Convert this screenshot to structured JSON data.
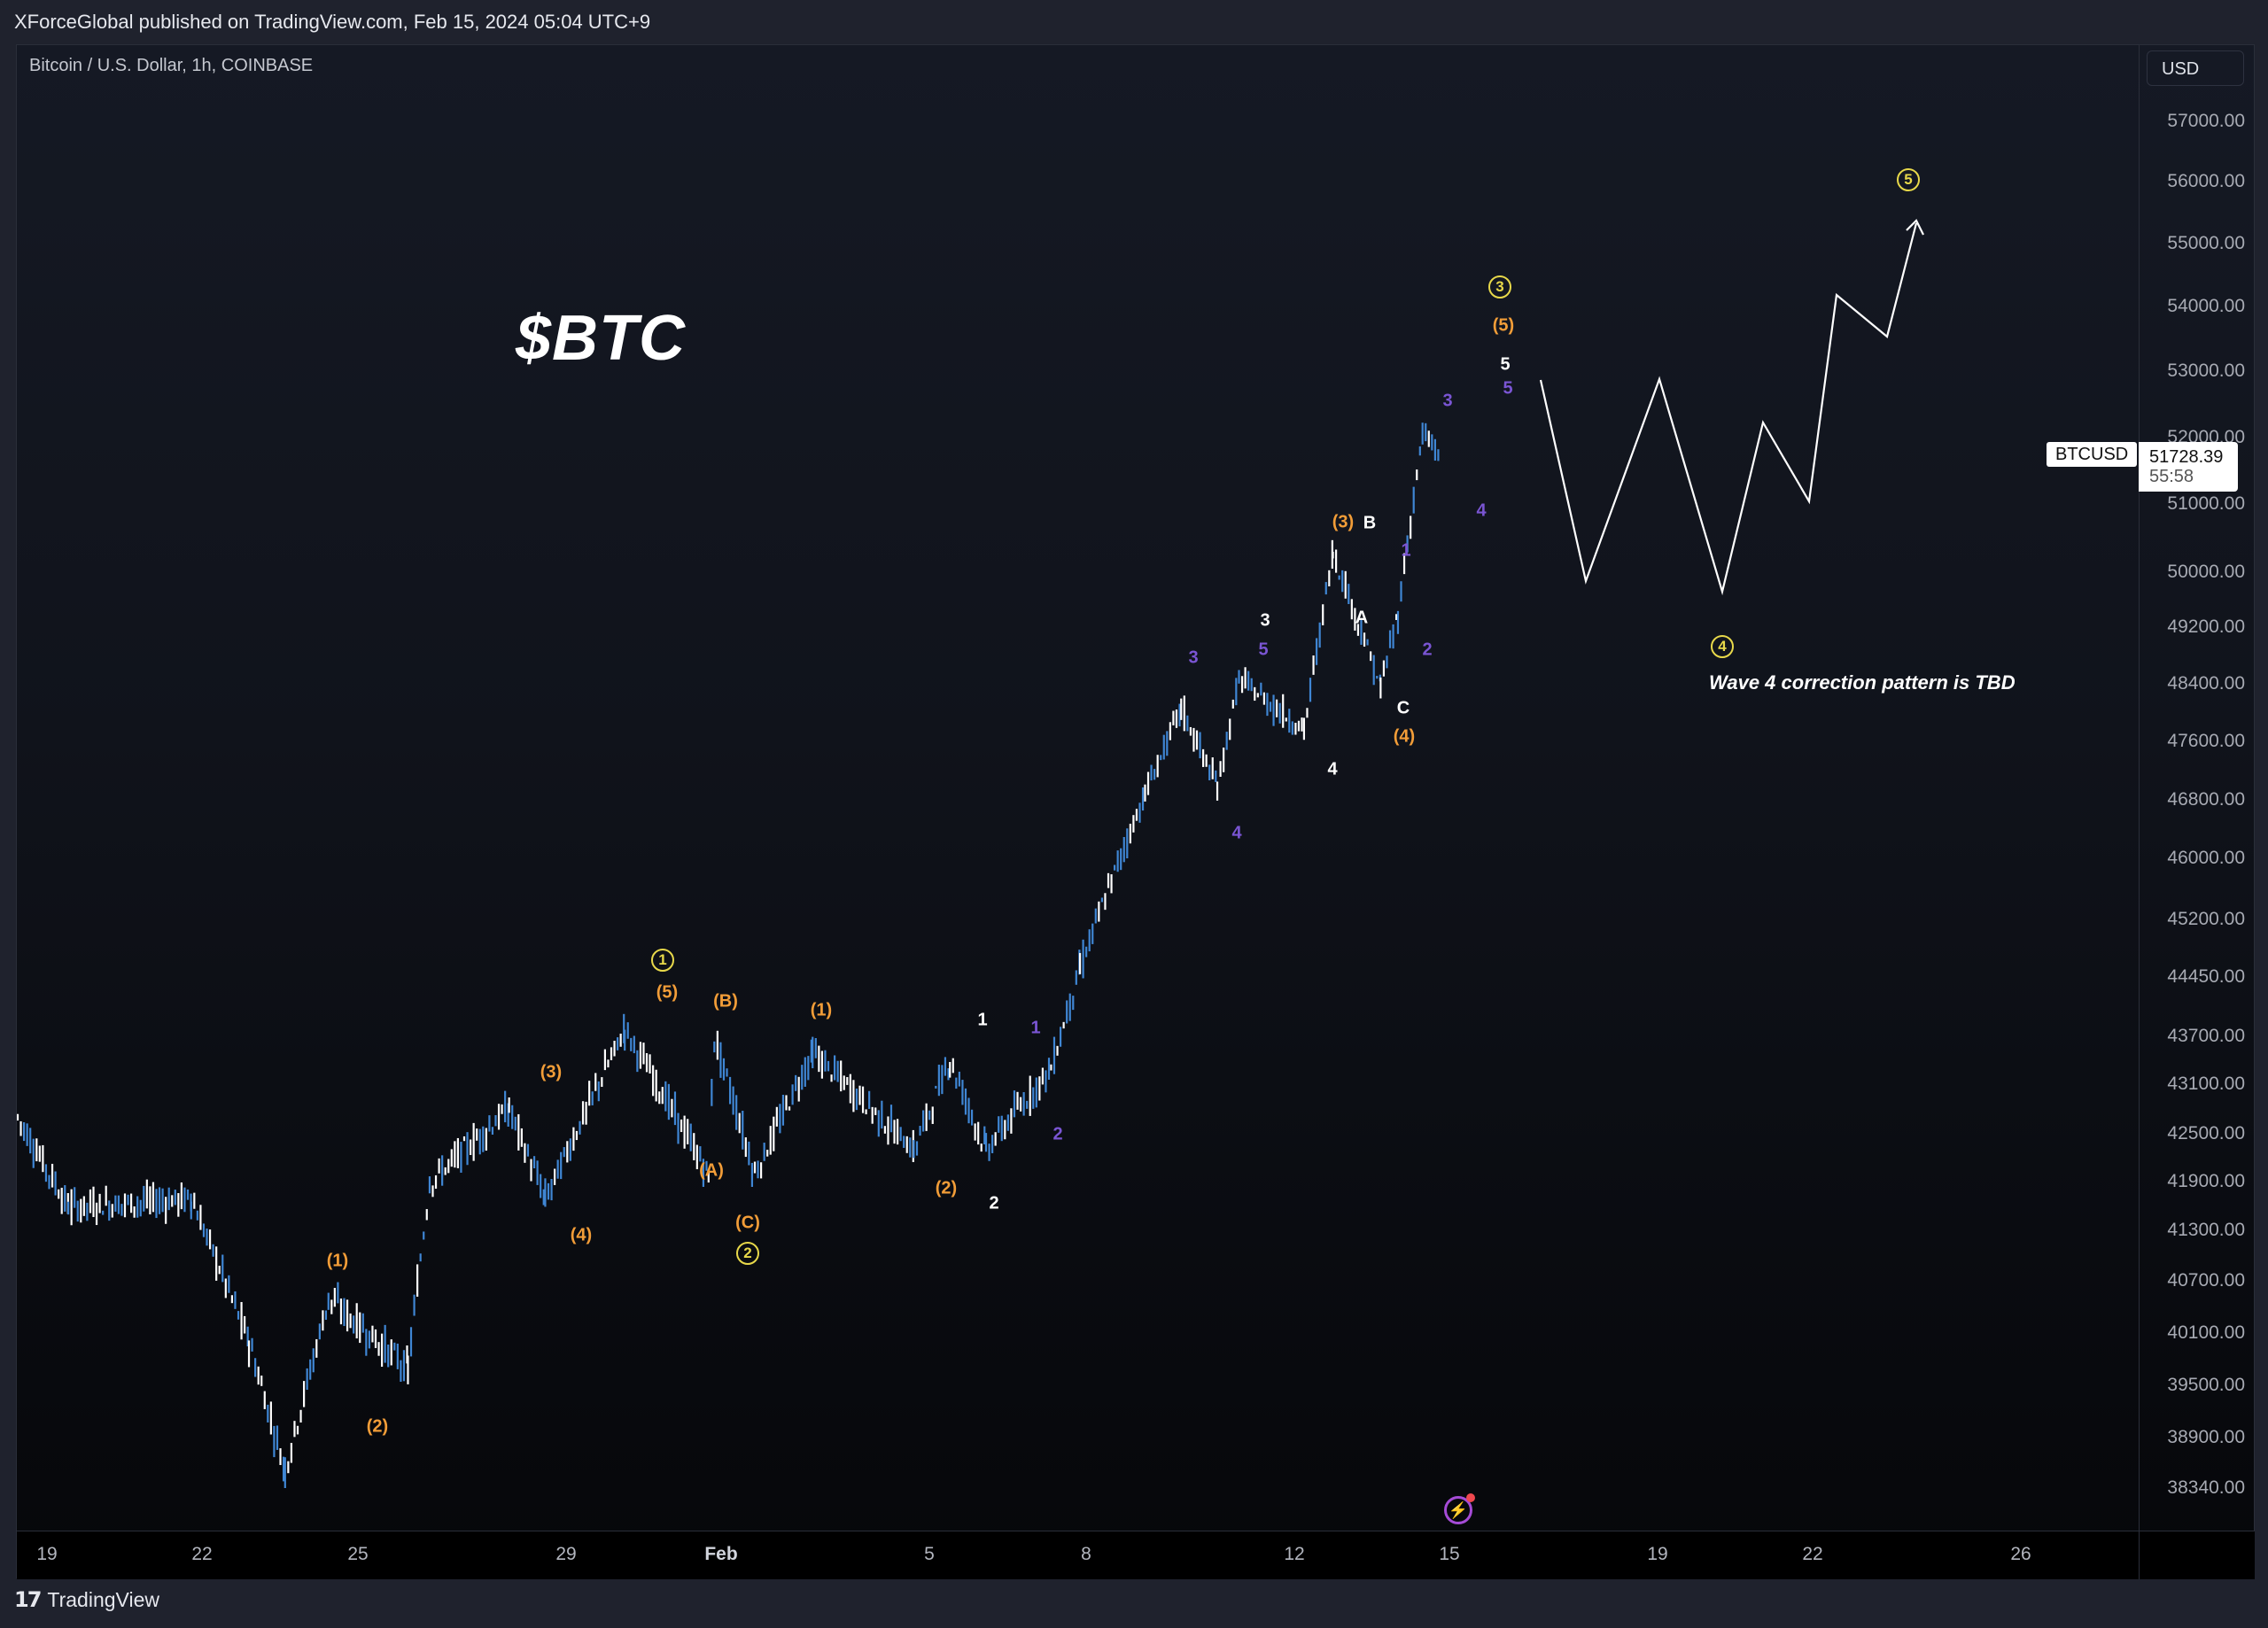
{
  "header": {
    "published": "XForceGlobal published on TradingView.com, Feb 15, 2024 05:04 UTC+9"
  },
  "chart": {
    "symbol_line": "Bitcoin / U.S. Dollar, 1h, COINBASE",
    "title": "$BTC",
    "currency_button": "USD",
    "last_price": {
      "symbol": "BTCUSD",
      "value": "51728.39",
      "countdown": "55:58"
    },
    "note": "Wave 4 correction pattern is TBD",
    "colors": {
      "up_candle": "#ffffff",
      "down_candle": "#3f86d4",
      "wave_primary": "#e8d94a",
      "wave_intermediate": "#f29d38",
      "wave_minor": "#ffffff",
      "wave_minute": "#7a55d3",
      "projection": "#ffffff"
    }
  },
  "footer": {
    "brand": "TradingView"
  },
  "chart_data": {
    "type": "candlestick",
    "title": "$BTC",
    "subtitle": "Bitcoin / U.S. Dollar, 1h, COINBASE",
    "xlabel": "",
    "ylabel": "USD",
    "y_ticks": [
      "57000.00",
      "56000.00",
      "55000.00",
      "54000.00",
      "53000.00",
      "52000.00",
      "51000.00",
      "50000.00",
      "49200.00",
      "48400.00",
      "47600.00",
      "46800.00",
      "46000.00",
      "45200.00",
      "44450.00",
      "43700.00",
      "43100.00",
      "42500.00",
      "41900.00",
      "41300.00",
      "40700.00",
      "40100.00",
      "39500.00",
      "38900.00",
      "38340.00"
    ],
    "x_ticks": [
      "19",
      "22",
      "25",
      "29",
      "Feb",
      "5",
      "8",
      "12",
      "15",
      "19",
      "22",
      "26"
    ],
    "ylim": [
      38000,
      57500
    ],
    "grid": false,
    "approx_price_path": [
      {
        "date": "Jan 19",
        "price": 42700
      },
      {
        "date": "Jan 20",
        "price": 41600
      },
      {
        "date": "Jan 22",
        "price": 41700
      },
      {
        "date": "Jan 23",
        "price": 40000
      },
      {
        "date": "Jan 23 low",
        "price": 38550
      },
      {
        "date": "Jan 24",
        "price": 40500
      },
      {
        "date": "Jan 25",
        "price": 39700
      },
      {
        "date": "Jan 26",
        "price": 41900
      },
      {
        "date": "Jan 29",
        "price": 42800
      },
      {
        "date": "Jan 29 pullback",
        "price": 41700
      },
      {
        "date": "Jan 30",
        "price": 43800
      },
      {
        "date": "Feb 1",
        "price": 42000
      },
      {
        "date": "Feb 1 high",
        "price": 43700
      },
      {
        "date": "Feb 2",
        "price": 42000
      },
      {
        "date": "Feb 3",
        "price": 43500
      },
      {
        "date": "Feb 5",
        "price": 42300
      },
      {
        "date": "Feb 6",
        "price": 43400
      },
      {
        "date": "Feb 6 low",
        "price": 42300
      },
      {
        "date": "Feb 7",
        "price": 43300
      },
      {
        "date": "Feb 8",
        "price": 44600
      },
      {
        "date": "Feb 9",
        "price": 46900
      },
      {
        "date": "Feb 10",
        "price": 48100
      },
      {
        "date": "Feb 10 dip",
        "price": 47000
      },
      {
        "date": "Feb 11",
        "price": 48500
      },
      {
        "date": "Feb 12",
        "price": 47800
      },
      {
        "date": "Feb 13",
        "price": 50300
      },
      {
        "date": "Feb 13 dip",
        "price": 48400
      },
      {
        "date": "Feb 14",
        "price": 49400
      },
      {
        "date": "Feb 14 high",
        "price": 52050
      },
      {
        "date": "Feb 15",
        "price": 51728.39
      }
    ],
    "last_price": 51728.39,
    "wave_labels": [
      {
        "label": "(1)",
        "degree": "intermediate",
        "approx_date": "Jan 24"
      },
      {
        "label": "(2)",
        "degree": "intermediate",
        "approx_date": "Jan 25"
      },
      {
        "label": "(3)",
        "degree": "intermediate",
        "approx_date": "Jan 29"
      },
      {
        "label": "(4)",
        "degree": "intermediate",
        "approx_date": "Jan 29"
      },
      {
        "label": "(5)",
        "degree": "intermediate",
        "approx_date": "Jan 30"
      },
      {
        "label": "1",
        "degree": "primary",
        "approx_date": "Jan 30"
      },
      {
        "label": "(A)",
        "degree": "intermediate",
        "approx_date": "Jan 31"
      },
      {
        "label": "(B)",
        "degree": "intermediate",
        "approx_date": "Feb 1"
      },
      {
        "label": "(C)",
        "degree": "intermediate",
        "approx_date": "Feb 1"
      },
      {
        "label": "2",
        "degree": "primary",
        "approx_date": "Feb 1"
      },
      {
        "label": "(1)",
        "degree": "intermediate",
        "approx_date": "Feb 2"
      },
      {
        "label": "(2)",
        "degree": "intermediate",
        "approx_date": "Feb 5"
      },
      {
        "label": "1",
        "degree": "minor",
        "approx_date": "Feb 6"
      },
      {
        "label": "2",
        "degree": "minor",
        "approx_date": "Feb 6"
      },
      {
        "label": "1",
        "degree": "minute",
        "approx_date": "Feb 7"
      },
      {
        "label": "2",
        "degree": "minute",
        "approx_date": "Feb 7"
      },
      {
        "label": "3",
        "degree": "minute",
        "approx_date": "Feb 10"
      },
      {
        "label": "4",
        "degree": "minute",
        "approx_date": "Feb 10"
      },
      {
        "label": "5",
        "degree": "minute",
        "approx_date": "Feb 11"
      },
      {
        "label": "3",
        "degree": "minor",
        "approx_date": "Feb 11"
      },
      {
        "label": "4",
        "degree": "minor",
        "approx_date": "Feb 12"
      },
      {
        "label": "(3)",
        "degree": "intermediate",
        "approx_date": "Feb 13"
      },
      {
        "label": "A",
        "degree": "minor",
        "approx_date": "Feb 13"
      },
      {
        "label": "B",
        "degree": "minor",
        "approx_date": "Feb 13"
      },
      {
        "label": "C",
        "degree": "minor",
        "approx_date": "Feb 14"
      },
      {
        "label": "(4)",
        "degree": "intermediate",
        "approx_date": "Feb 14"
      },
      {
        "label": "1",
        "degree": "minute",
        "approx_date": "Feb 14"
      },
      {
        "label": "2",
        "degree": "minute",
        "approx_date": "Feb 14"
      },
      {
        "label": "3",
        "degree": "minute",
        "approx_date": "Feb 15"
      },
      {
        "label": "4",
        "degree": "minute",
        "approx_date": "Feb 15"
      },
      {
        "label": "5",
        "degree": "minute",
        "approx_date": "Feb 15"
      },
      {
        "label": "5",
        "degree": "minor",
        "approx_date": "Feb 15"
      },
      {
        "label": "(5)",
        "degree": "intermediate",
        "approx_date": "Feb 15"
      },
      {
        "label": "3",
        "degree": "primary",
        "approx_date": "Feb 15"
      },
      {
        "label": "4",
        "degree": "primary",
        "approx_date": "Feb 20",
        "note": "projected"
      },
      {
        "label": "5",
        "degree": "primary",
        "approx_date": "Feb 24",
        "note": "projected"
      }
    ],
    "projection_path": [
      {
        "approx_date": "Feb 16",
        "price": 52900
      },
      {
        "approx_date": "Feb 17",
        "price": 49900
      },
      {
        "approx_date": "Feb 18",
        "price": 52900
      },
      {
        "approx_date": "Feb 20",
        "price": 49800
      },
      {
        "approx_date": "Feb 21",
        "price": 52300
      },
      {
        "approx_date": "Feb 22",
        "price": 51100
      },
      {
        "approx_date": "Feb 23",
        "price": 54100
      },
      {
        "approx_date": "Feb 24",
        "price": 53500
      },
      {
        "approx_date": "Feb 24",
        "price": 55300
      }
    ],
    "annotations": [
      "$BTC",
      "Wave 4 correction pattern is TBD"
    ]
  }
}
